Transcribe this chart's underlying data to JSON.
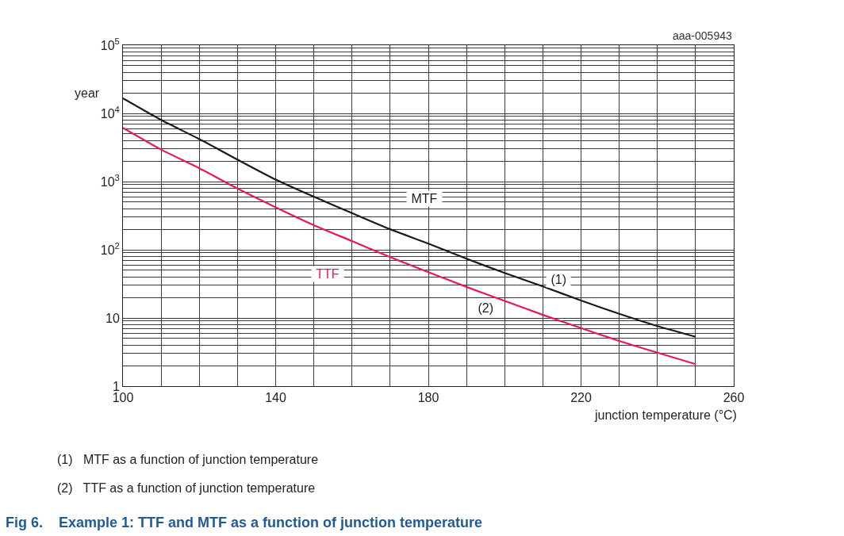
{
  "chart_data": {
    "type": "line",
    "title": "Fig 6.    Example 1: TTF and MTF as a function of junction temperature",
    "xlabel": "junction temperature (°C)",
    "ylabel": "year",
    "x": [
      100,
      110,
      120,
      130,
      140,
      150,
      160,
      170,
      180,
      190,
      200,
      210,
      220,
      230,
      240,
      250
    ],
    "series": [
      {
        "name": "MTF",
        "color": "#1a1a1a",
        "values": [
          16600,
          8000,
          4200,
          2100,
          1070,
          600,
          345,
          200,
          123,
          74,
          45.6,
          29,
          18,
          11.5,
          7.6,
          5.3
        ]
      },
      {
        "name": "TTF",
        "color": "#e8175d",
        "values": [
          6150,
          2950,
          1570,
          790,
          420,
          230,
          134,
          78,
          47,
          28.5,
          17.8,
          11.1,
          7.1,
          4.6,
          3.1,
          2.1
        ]
      }
    ],
    "xlim": [
      100,
      260
    ],
    "xticks": [
      100,
      140,
      180,
      220,
      260
    ],
    "ylim": [
      1,
      100000
    ],
    "yticks": [
      1,
      10,
      {
        "value": 100,
        "label": "10$^{2}$"
      },
      {
        "value": 1000,
        "label": "10$^{3}$"
      },
      {
        "value": 10000,
        "label": "10$^{4}$"
      },
      {
        "value": 100000,
        "label": "10$^{5}$"
      }
    ],
    "log": "y",
    "grid": true,
    "legend": false,
    "marker": "none",
    "line_style": "solid",
    "annotations": [
      "aaa-005943",
      "(1)   MTF as a function of junction temperature",
      "(2)   TTF as a function of junction temperature",
      {
        "text": "(1)",
        "x": 214,
        "y": 37
      },
      {
        "text": "(2)",
        "x": 195,
        "y": 14
      }
    ]
  }
}
